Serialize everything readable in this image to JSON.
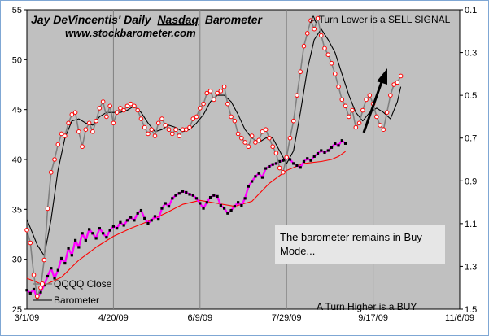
{
  "colors": {
    "plot_bg": "#c0c0c0",
    "barometer_fast": "#808080",
    "barometer_marker": "#ff0000",
    "barometer_avg": "#000000",
    "qqqq_close": "#ff00ff",
    "qqqq_marker": "#000000",
    "qqqq_avg": "#ff0000",
    "note_box": "#e6e6e6"
  },
  "chart_data": {
    "type": "line",
    "title": "Jay DeVincentis' Daily",
    "title_underlined": "Nasdaq",
    "title_suffix": "Barometer",
    "subtitle": "www.stockbarometer.com",
    "annotation_top_right": "A Turn Lower is a SELL  SIGNAL",
    "annotation_bottom": "A Turn Higher is a BUY",
    "note": "The barometer remains in Buy Mode...",
    "legend": [
      "QQQQ Close",
      "Barometer"
    ],
    "legend_placement": "bottom-left",
    "grid": {
      "x": true,
      "y": false
    },
    "x_tick_labels": [
      "3/1/09",
      "4/20/09",
      "6/9/09",
      "7/29/09",
      "9/17/09",
      "11/6/09"
    ],
    "x_range": [
      0,
      250
    ],
    "y_left": {
      "range": [
        25,
        55
      ],
      "ticks": [
        25,
        30,
        35,
        40,
        45,
        50,
        55
      ]
    },
    "y_right": {
      "range": [
        0.1,
        1.5
      ],
      "inverted": true,
      "tick_labels": [
        "0.1",
        "0.3",
        "0.5",
        "0.7",
        "0.9",
        "1.1",
        "1.3",
        "1.5"
      ]
    },
    "series": [
      {
        "name": "Barometer",
        "axis": "right",
        "points": [
          [
            0,
            1.13
          ],
          [
            2,
            1.19
          ],
          [
            4,
            1.34
          ],
          [
            6,
            1.44
          ],
          [
            8,
            1.4
          ],
          [
            10,
            1.27
          ],
          [
            12,
            1.03
          ],
          [
            14,
            0.86
          ],
          [
            16,
            0.8
          ],
          [
            18,
            0.73
          ],
          [
            20,
            0.68
          ],
          [
            22,
            0.69
          ],
          [
            24,
            0.63
          ],
          [
            26,
            0.59
          ],
          [
            28,
            0.58
          ],
          [
            30,
            0.67
          ],
          [
            32,
            0.74
          ],
          [
            34,
            0.66
          ],
          [
            36,
            0.63
          ],
          [
            38,
            0.67
          ],
          [
            40,
            0.62
          ],
          [
            42,
            0.56
          ],
          [
            44,
            0.53
          ],
          [
            46,
            0.6
          ],
          [
            48,
            0.55
          ],
          [
            50,
            0.63
          ],
          [
            52,
            0.58
          ],
          [
            54,
            0.56
          ],
          [
            56,
            0.57
          ],
          [
            58,
            0.55
          ],
          [
            60,
            0.54
          ],
          [
            62,
            0.55
          ],
          [
            64,
            0.57
          ],
          [
            66,
            0.61
          ],
          [
            68,
            0.65
          ],
          [
            70,
            0.68
          ],
          [
            72,
            0.66
          ],
          [
            74,
            0.69
          ],
          [
            76,
            0.63
          ],
          [
            78,
            0.61
          ],
          [
            80,
            0.64
          ],
          [
            82,
            0.66
          ],
          [
            84,
            0.68
          ],
          [
            86,
            0.66
          ],
          [
            88,
            0.69
          ],
          [
            90,
            0.66
          ],
          [
            92,
            0.66
          ],
          [
            94,
            0.65
          ],
          [
            96,
            0.61
          ],
          [
            98,
            0.6
          ],
          [
            100,
            0.56
          ],
          [
            102,
            0.54
          ],
          [
            104,
            0.49
          ],
          [
            106,
            0.48
          ],
          [
            108,
            0.52
          ],
          [
            110,
            0.49
          ],
          [
            112,
            0.48
          ],
          [
            114,
            0.46
          ],
          [
            116,
            0.54
          ],
          [
            118,
            0.6
          ],
          [
            120,
            0.62
          ],
          [
            122,
            0.68
          ],
          [
            124,
            0.7
          ],
          [
            126,
            0.72
          ],
          [
            128,
            0.74
          ],
          [
            130,
            0.69
          ],
          [
            132,
            0.72
          ],
          [
            134,
            0.71
          ],
          [
            136,
            0.67
          ],
          [
            138,
            0.66
          ],
          [
            140,
            0.7
          ],
          [
            142,
            0.74
          ],
          [
            144,
            0.77
          ],
          [
            146,
            0.84
          ],
          [
            148,
            0.86
          ],
          [
            150,
            0.79
          ],
          [
            152,
            0.7
          ],
          [
            154,
            0.62
          ],
          [
            156,
            0.5
          ],
          [
            158,
            0.39
          ],
          [
            160,
            0.27
          ],
          [
            162,
            0.21
          ],
          [
            164,
            0.15
          ],
          [
            166,
            0.19
          ],
          [
            168,
            0.14
          ],
          [
            170,
            0.22
          ],
          [
            172,
            0.28
          ],
          [
            174,
            0.31
          ],
          [
            176,
            0.35
          ],
          [
            178,
            0.4
          ],
          [
            180,
            0.46
          ],
          [
            182,
            0.52
          ],
          [
            184,
            0.55
          ],
          [
            186,
            0.6
          ],
          [
            188,
            0.57
          ],
          [
            190,
            0.65
          ],
          [
            192,
            0.63
          ],
          [
            194,
            0.57
          ],
          [
            196,
            0.52
          ],
          [
            198,
            0.5
          ],
          [
            200,
            0.54
          ],
          [
            202,
            0.6
          ],
          [
            204,
            0.64
          ],
          [
            206,
            0.66
          ],
          [
            208,
            0.58
          ],
          [
            210,
            0.5
          ],
          [
            212,
            0.45
          ],
          [
            214,
            0.44
          ],
          [
            216,
            0.41
          ]
        ]
      },
      {
        "name": "Barometer average",
        "axis": "right",
        "points": [
          [
            0,
            1.08
          ],
          [
            6,
            1.2
          ],
          [
            10,
            1.25
          ],
          [
            14,
            1.08
          ],
          [
            18,
            0.85
          ],
          [
            22,
            0.7
          ],
          [
            26,
            0.62
          ],
          [
            30,
            0.61
          ],
          [
            34,
            0.63
          ],
          [
            38,
            0.64
          ],
          [
            42,
            0.6
          ],
          [
            46,
            0.58
          ],
          [
            50,
            0.58
          ],
          [
            54,
            0.58
          ],
          [
            58,
            0.57
          ],
          [
            62,
            0.55
          ],
          [
            66,
            0.58
          ],
          [
            70,
            0.63
          ],
          [
            74,
            0.67
          ],
          [
            78,
            0.66
          ],
          [
            82,
            0.64
          ],
          [
            86,
            0.65
          ],
          [
            90,
            0.67
          ],
          [
            94,
            0.66
          ],
          [
            98,
            0.63
          ],
          [
            102,
            0.59
          ],
          [
            106,
            0.53
          ],
          [
            110,
            0.5
          ],
          [
            114,
            0.5
          ],
          [
            118,
            0.53
          ],
          [
            122,
            0.59
          ],
          [
            126,
            0.66
          ],
          [
            130,
            0.7
          ],
          [
            134,
            0.72
          ],
          [
            138,
            0.7
          ],
          [
            142,
            0.7
          ],
          [
            146,
            0.76
          ],
          [
            150,
            0.82
          ],
          [
            154,
            0.76
          ],
          [
            158,
            0.58
          ],
          [
            162,
            0.38
          ],
          [
            166,
            0.24
          ],
          [
            170,
            0.19
          ],
          [
            174,
            0.24
          ],
          [
            178,
            0.3
          ],
          [
            182,
            0.4
          ],
          [
            186,
            0.5
          ],
          [
            190,
            0.58
          ],
          [
            194,
            0.62
          ],
          [
            198,
            0.58
          ],
          [
            202,
            0.56
          ],
          [
            206,
            0.58
          ],
          [
            210,
            0.61
          ],
          [
            214,
            0.53
          ],
          [
            216,
            0.46
          ]
        ]
      },
      {
        "name": "QQQQ Close",
        "axis": "left",
        "points": [
          [
            0,
            26.9
          ],
          [
            2,
            26.6
          ],
          [
            4,
            27.0
          ],
          [
            6,
            26.1
          ],
          [
            8,
            26.7
          ],
          [
            10,
            27.4
          ],
          [
            12,
            28.3
          ],
          [
            14,
            29.1
          ],
          [
            16,
            28.1
          ],
          [
            18,
            28.9
          ],
          [
            20,
            30.1
          ],
          [
            22,
            29.6
          ],
          [
            24,
            31.1
          ],
          [
            26,
            30.4
          ],
          [
            28,
            31.9
          ],
          [
            30,
            31.2
          ],
          [
            32,
            32.6
          ],
          [
            34,
            31.9
          ],
          [
            36,
            33.0
          ],
          [
            38,
            32.6
          ],
          [
            40,
            32.1
          ],
          [
            42,
            33.1
          ],
          [
            44,
            32.6
          ],
          [
            46,
            32.2
          ],
          [
            48,
            32.9
          ],
          [
            50,
            33.3
          ],
          [
            52,
            33.1
          ],
          [
            54,
            33.7
          ],
          [
            56,
            33.4
          ],
          [
            58,
            33.9
          ],
          [
            60,
            34.2
          ],
          [
            62,
            33.9
          ],
          [
            64,
            34.6
          ],
          [
            66,
            34.9
          ],
          [
            68,
            34.1
          ],
          [
            70,
            33.6
          ],
          [
            72,
            33.9
          ],
          [
            74,
            34.3
          ],
          [
            76,
            34.0
          ],
          [
            78,
            35.1
          ],
          [
            80,
            35.6
          ],
          [
            82,
            35.3
          ],
          [
            84,
            36.1
          ],
          [
            86,
            36.4
          ],
          [
            88,
            36.6
          ],
          [
            90,
            36.8
          ],
          [
            92,
            36.7
          ],
          [
            94,
            36.5
          ],
          [
            96,
            36.4
          ],
          [
            98,
            36.1
          ],
          [
            100,
            35.6
          ],
          [
            102,
            35.1
          ],
          [
            104,
            35.7
          ],
          [
            106,
            36.2
          ],
          [
            108,
            36.4
          ],
          [
            110,
            36.3
          ],
          [
            112,
            35.4
          ],
          [
            114,
            35.1
          ],
          [
            116,
            34.6
          ],
          [
            118,
            34.9
          ],
          [
            120,
            35.3
          ],
          [
            122,
            35.7
          ],
          [
            124,
            35.4
          ],
          [
            126,
            36.1
          ],
          [
            128,
            37.3
          ],
          [
            130,
            37.8
          ],
          [
            132,
            38.3
          ],
          [
            134,
            38.6
          ],
          [
            136,
            38.2
          ],
          [
            138,
            39.1
          ],
          [
            140,
            39.3
          ],
          [
            142,
            39.5
          ],
          [
            144,
            39.6
          ],
          [
            146,
            39.8
          ],
          [
            148,
            39.9
          ],
          [
            150,
            40.2
          ],
          [
            152,
            40.0
          ],
          [
            154,
            39.6
          ],
          [
            156,
            39.4
          ],
          [
            158,
            39.2
          ],
          [
            160,
            39.8
          ],
          [
            162,
            40.1
          ],
          [
            164,
            39.9
          ],
          [
            166,
            40.3
          ],
          [
            168,
            40.6
          ],
          [
            170,
            40.9
          ],
          [
            172,
            40.7
          ],
          [
            174,
            40.9
          ],
          [
            176,
            41.2
          ],
          [
            178,
            41.6
          ],
          [
            180,
            41.4
          ],
          [
            182,
            41.9
          ],
          [
            184,
            41.6
          ]
        ]
      },
      {
        "name": "QQQQ average",
        "axis": "left",
        "points": [
          [
            0,
            28.1
          ],
          [
            10,
            27.4
          ],
          [
            20,
            28.2
          ],
          [
            30,
            29.9
          ],
          [
            40,
            31.2
          ],
          [
            50,
            32.3
          ],
          [
            60,
            33.1
          ],
          [
            70,
            33.8
          ],
          [
            80,
            34.6
          ],
          [
            90,
            35.5
          ],
          [
            100,
            35.9
          ],
          [
            110,
            35.6
          ],
          [
            120,
            35.3
          ],
          [
            130,
            35.8
          ],
          [
            140,
            37.6
          ],
          [
            150,
            38.9
          ],
          [
            160,
            39.6
          ],
          [
            170,
            39.8
          ],
          [
            176,
            40.0
          ],
          [
            180,
            40.3
          ],
          [
            184,
            40.8
          ]
        ]
      }
    ]
  }
}
